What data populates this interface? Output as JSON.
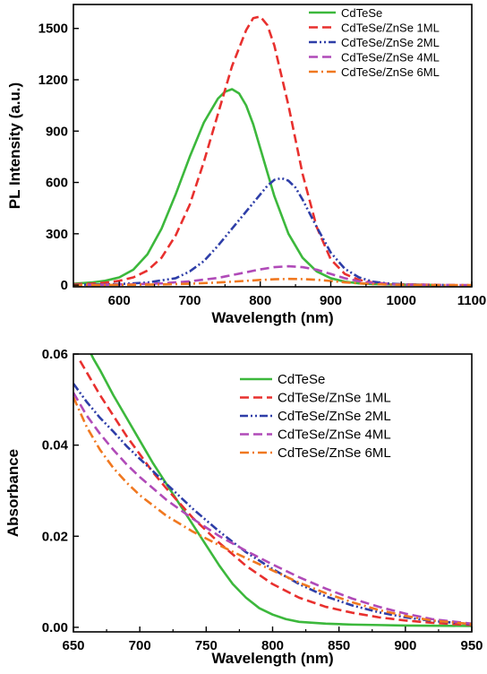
{
  "chart_data": [
    {
      "type": "line",
      "xlabel": "Wavelength (nm)",
      "ylabel": "PL Intensity (a.u.)",
      "xlim": [
        535,
        1100
      ],
      "ylim": [
        -10,
        1640
      ],
      "xticks": [
        600,
        700,
        800,
        900,
        1000,
        1100
      ],
      "yticks": [
        0,
        300,
        600,
        900,
        1200,
        1500
      ],
      "legend_position": "top-right",
      "series": [
        {
          "name": "CdTeSe",
          "color": "#3cb83c",
          "dash": "solid",
          "x": [
            535,
            560,
            580,
            600,
            620,
            640,
            660,
            680,
            700,
            720,
            740,
            750,
            760,
            770,
            780,
            790,
            800,
            810,
            820,
            840,
            860,
            880,
            900,
            920,
            940,
            960,
            980,
            1000,
            1020,
            1050
          ],
          "y": [
            8,
            15,
            25,
            45,
            90,
            180,
            330,
            530,
            750,
            950,
            1090,
            1130,
            1145,
            1120,
            1050,
            940,
            800,
            660,
            520,
            300,
            160,
            80,
            40,
            20,
            10,
            6,
            4,
            3,
            2,
            1
          ]
        },
        {
          "name": "CdTeSe/ZnSe 1ML",
          "color": "#e8302e",
          "dash": "dashed",
          "x": [
            535,
            560,
            580,
            600,
            620,
            640,
            660,
            680,
            700,
            720,
            740,
            760,
            780,
            790,
            800,
            810,
            820,
            840,
            860,
            880,
            900,
            920,
            940,
            960,
            980,
            1000,
            1020,
            1050
          ],
          "y": [
            5,
            8,
            14,
            25,
            45,
            85,
            160,
            290,
            470,
            720,
            1000,
            1280,
            1490,
            1560,
            1570,
            1520,
            1400,
            1050,
            650,
            340,
            150,
            65,
            30,
            15,
            8,
            5,
            3,
            2
          ]
        },
        {
          "name": "CdTeSe/ZnSe 2ML",
          "color": "#2e3ea8",
          "dash": "dashdotdot",
          "x": [
            535,
            560,
            600,
            640,
            680,
            700,
            720,
            740,
            760,
            780,
            800,
            810,
            820,
            830,
            840,
            850,
            860,
            880,
            900,
            920,
            940,
            960,
            980,
            1000,
            1030,
            1060
          ],
          "y": [
            2,
            3,
            6,
            15,
            40,
            80,
            140,
            230,
            330,
            430,
            530,
            580,
            615,
            625,
            610,
            570,
            500,
            340,
            190,
            95,
            45,
            20,
            10,
            5,
            2,
            1
          ]
        },
        {
          "name": "CdTeSe/ZnSe 4ML",
          "color": "#b04ab8",
          "dash": "dashed",
          "x": [
            535,
            580,
            620,
            660,
            700,
            740,
            780,
            800,
            820,
            840,
            860,
            880,
            900,
            920,
            940,
            960,
            980,
            1000,
            1030,
            1060,
            1100
          ],
          "y": [
            1,
            2,
            5,
            10,
            22,
            42,
            75,
            92,
            105,
            110,
            105,
            90,
            65,
            40,
            22,
            12,
            6,
            3,
            2,
            1,
            0
          ]
        },
        {
          "name": "CdTeSe/ZnSe 6ML",
          "color": "#f07820",
          "dash": "dashdot",
          "x": [
            535,
            580,
            620,
            660,
            700,
            740,
            780,
            800,
            820,
            840,
            860,
            880,
            900,
            920,
            940,
            960,
            980,
            1000,
            1030,
            1060,
            1100
          ],
          "y": [
            0,
            1,
            2,
            4,
            8,
            15,
            25,
            30,
            34,
            36,
            35,
            31,
            24,
            16,
            10,
            6,
            3,
            2,
            1,
            0,
            0
          ]
        }
      ]
    },
    {
      "type": "line",
      "xlabel": "Wavelength (nm)",
      "ylabel": "Absorbance",
      "xlim": [
        650,
        950
      ],
      "ylim": [
        -0.001,
        0.06
      ],
      "xticks": [
        650,
        700,
        750,
        800,
        850,
        900,
        950
      ],
      "yticks": [
        0.0,
        0.02,
        0.04,
        0.06
      ],
      "ytick_labels": [
        "0.00",
        "0.02",
        "0.04",
        "0.06"
      ],
      "legend_position": "top-right",
      "series": [
        {
          "name": "CdTeSe",
          "color": "#3cb83c",
          "dash": "solid",
          "x": [
            660,
            665,
            670,
            680,
            690,
            700,
            710,
            720,
            730,
            740,
            750,
            760,
            770,
            780,
            790,
            800,
            810,
            820,
            840,
            860,
            880,
            900,
            950
          ],
          "y": [
            0.062,
            0.059,
            0.0565,
            0.051,
            0.046,
            0.041,
            0.036,
            0.0315,
            0.027,
            0.0225,
            0.018,
            0.0135,
            0.0095,
            0.0065,
            0.0042,
            0.0028,
            0.0018,
            0.0012,
            0.0008,
            0.0006,
            0.0005,
            0.0004,
            0.0003
          ]
        },
        {
          "name": "CdTeSe/ZnSe 1ML",
          "color": "#e8302e",
          "dash": "dashed",
          "x": [
            655,
            660,
            670,
            680,
            690,
            700,
            710,
            720,
            740,
            760,
            780,
            800,
            820,
            840,
            860,
            880,
            900,
            920,
            950
          ],
          "y": [
            0.0585,
            0.056,
            0.051,
            0.0465,
            0.042,
            0.038,
            0.034,
            0.0305,
            0.024,
            0.0185,
            0.0135,
            0.0095,
            0.0065,
            0.0045,
            0.0032,
            0.0022,
            0.0015,
            0.001,
            0.0005
          ]
        },
        {
          "name": "CdTeSe/ZnSe 2ML",
          "color": "#2e3ea8",
          "dash": "dashdotdot",
          "x": [
            650,
            660,
            670,
            680,
            690,
            700,
            720,
            740,
            760,
            780,
            800,
            820,
            840,
            860,
            880,
            900,
            920,
            950
          ],
          "y": [
            0.0535,
            0.0495,
            0.046,
            0.043,
            0.0398,
            0.037,
            0.0315,
            0.026,
            0.021,
            0.0165,
            0.0128,
            0.0095,
            0.0068,
            0.0048,
            0.0033,
            0.0022,
            0.0014,
            0.0007
          ]
        },
        {
          "name": "CdTeSe/ZnSe 4ML",
          "color": "#b04ab8",
          "dash": "dashed",
          "x": [
            650,
            660,
            670,
            680,
            690,
            700,
            720,
            740,
            760,
            780,
            800,
            820,
            840,
            860,
            880,
            900,
            920,
            950
          ],
          "y": [
            0.0515,
            0.0465,
            0.0425,
            0.039,
            0.0358,
            0.033,
            0.028,
            0.0238,
            0.02,
            0.0168,
            0.0138,
            0.011,
            0.0085,
            0.0063,
            0.0045,
            0.003,
            0.0018,
            0.0008
          ]
        },
        {
          "name": "CdTeSe/ZnSe 6ML",
          "color": "#f07820",
          "dash": "dashdot",
          "x": [
            650,
            660,
            670,
            680,
            690,
            700,
            720,
            740,
            760,
            780,
            800,
            820,
            840,
            860,
            880,
            900,
            920,
            950
          ],
          "y": [
            0.0505,
            0.044,
            0.039,
            0.035,
            0.0318,
            0.029,
            0.0245,
            0.021,
            0.018,
            0.0152,
            0.0125,
            0.0098,
            0.0075,
            0.0055,
            0.0038,
            0.0025,
            0.0015,
            0.0007
          ]
        }
      ]
    }
  ]
}
